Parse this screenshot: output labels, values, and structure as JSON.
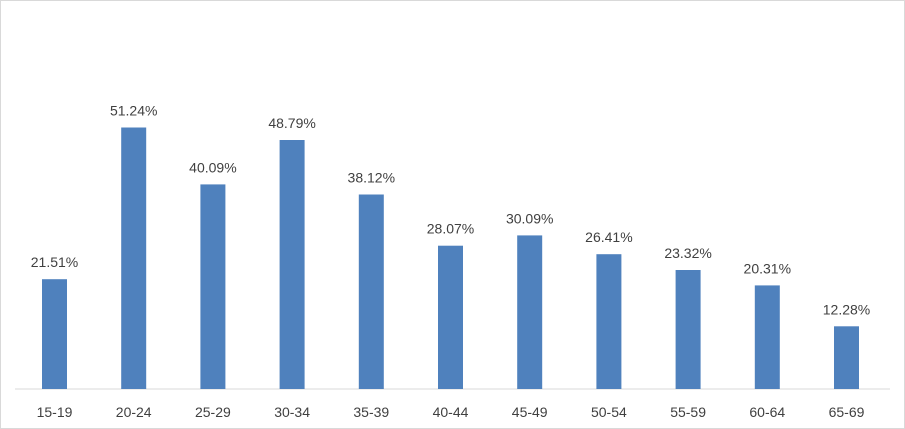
{
  "chart_data": {
    "type": "bar",
    "title": "",
    "xlabel": "",
    "ylabel": "",
    "categories": [
      "15-19",
      "20-24",
      "25-29",
      "30-34",
      "35-39",
      "40-44",
      "45-49",
      "50-54",
      "55-59",
      "60-64",
      "65-69"
    ],
    "values": [
      21.51,
      51.24,
      40.09,
      48.79,
      38.12,
      28.07,
      30.09,
      26.41,
      23.32,
      20.31,
      12.28
    ],
    "value_labels": [
      "21.51%",
      "51.24%",
      "40.09%",
      "48.79%",
      "38.12%",
      "28.07%",
      "30.09%",
      "26.41%",
      "23.32%",
      "20.31%",
      "12.28%"
    ],
    "ylim": [
      0,
      60
    ],
    "grid": false,
    "legend": "none",
    "bar_color": "#4f81bd"
  }
}
